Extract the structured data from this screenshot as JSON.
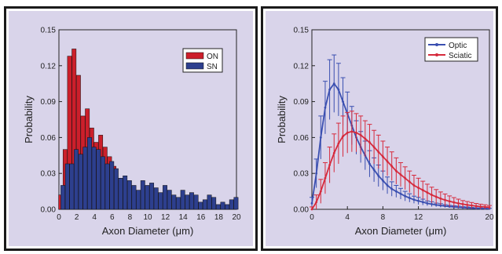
{
  "chart_data": [
    {
      "type": "bar",
      "xlabel": "Axon Diameter (μm)",
      "ylabel": "Probability",
      "xlim": [
        0,
        20
      ],
      "ylim": [
        0,
        0.15
      ],
      "xticks": [
        "0",
        "2",
        "4",
        "6",
        "8",
        "10",
        "12",
        "14",
        "16",
        "18",
        "20"
      ],
      "yticks": [
        "0.00",
        "0.03",
        "0.06",
        "0.09",
        "0.12",
        "0.15"
      ],
      "legend_position": "top-right",
      "background": "#d9d4ea",
      "series": [
        {
          "name": "ON",
          "color": "#cc1f2b",
          "x": [
            0.2,
            0.7,
            1.2,
            1.7,
            2.2,
            2.7,
            3.2,
            3.7,
            4.2,
            4.7,
            5.2,
            5.7,
            6.2,
            6.7,
            7.2,
            7.7,
            8.2
          ],
          "values": [
            0.012,
            0.05,
            0.128,
            0.134,
            0.112,
            0.078,
            0.084,
            0.068,
            0.056,
            0.062,
            0.052,
            0.044,
            0.036,
            0.026,
            0.014,
            0.006,
            0.002
          ]
        },
        {
          "name": "SN",
          "color": "#2d3f8e",
          "x": [
            0.45,
            0.95,
            1.45,
            1.95,
            2.45,
            2.95,
            3.45,
            3.95,
            4.45,
            4.95,
            5.45,
            5.95,
            6.45,
            6.95,
            7.45,
            7.95,
            8.45,
            8.95,
            9.45,
            9.95,
            10.45,
            10.95,
            11.45,
            11.95,
            12.45,
            12.95,
            13.45,
            13.95,
            14.45,
            14.95,
            15.45,
            15.95,
            16.45,
            16.95,
            17.45,
            17.95,
            18.45,
            18.95,
            19.45,
            19.95
          ],
          "values": [
            0.02,
            0.038,
            0.038,
            0.05,
            0.046,
            0.052,
            0.06,
            0.052,
            0.05,
            0.044,
            0.038,
            0.04,
            0.034,
            0.026,
            0.028,
            0.024,
            0.02,
            0.016,
            0.024,
            0.02,
            0.022,
            0.018,
            0.014,
            0.02,
            0.016,
            0.012,
            0.01,
            0.016,
            0.012,
            0.014,
            0.012,
            0.006,
            0.008,
            0.012,
            0.01,
            0.004,
            0.006,
            0.004,
            0.008,
            0.01
          ]
        }
      ]
    },
    {
      "type": "line",
      "xlabel": "Axon Diameter (μm)",
      "ylabel": "Probability",
      "xlim": [
        0,
        20
      ],
      "ylim": [
        0,
        0.15
      ],
      "xticks": [
        "0",
        "4",
        "8",
        "12",
        "16",
        "20"
      ],
      "yticks": [
        "0.00",
        "0.03",
        "0.06",
        "0.09",
        "0.12",
        "0.15"
      ],
      "legend_position": "top-right",
      "background": "#d9d4ea",
      "grid": false,
      "series": [
        {
          "name": "Optic",
          "color": "#3a4fb0",
          "x": [
            0,
            0.5,
            1,
            1.5,
            2,
            2.5,
            3,
            3.5,
            4,
            4.5,
            5,
            5.5,
            6,
            6.5,
            7,
            7.5,
            8,
            8.5,
            9,
            9.5,
            10,
            10.5,
            11,
            11.5,
            12,
            12.5,
            13,
            13.5,
            14,
            14.5,
            15,
            15.5,
            16,
            16.5,
            17,
            17.5,
            18,
            18.5,
            19,
            19.5,
            20
          ],
          "values": [
            0.005,
            0.03,
            0.06,
            0.085,
            0.1,
            0.105,
            0.1,
            0.09,
            0.08,
            0.07,
            0.06,
            0.052,
            0.045,
            0.038,
            0.033,
            0.028,
            0.024,
            0.02,
            0.017,
            0.015,
            0.013,
            0.011,
            0.0095,
            0.008,
            0.007,
            0.006,
            0.005,
            0.0043,
            0.0037,
            0.0032,
            0.0027,
            0.0023,
            0.002,
            0.0017,
            0.0014,
            0.0012,
            0.001,
            0.0008,
            0.0007,
            0.0006,
            0.0005
          ],
          "errors": [
            0.005,
            0.012,
            0.018,
            0.022,
            0.025,
            0.024,
            0.022,
            0.02,
            0.018,
            0.016,
            0.014,
            0.013,
            0.012,
            0.011,
            0.01,
            0.009,
            0.008,
            0.007,
            0.006,
            0.005,
            0.0045,
            0.004,
            0.0035,
            0.003,
            0.003,
            0.0025,
            0.002,
            0.002,
            0.0015,
            0.0015,
            0.0012,
            0.001,
            0.001,
            0.001,
            0.0008,
            0.0008,
            0.0006,
            0.0005,
            0.0005,
            0.0004,
            0.0003
          ]
        },
        {
          "name": "Sciatic",
          "color": "#d62a3c",
          "x": [
            0,
            0.5,
            1,
            1.5,
            2,
            2.5,
            3,
            3.5,
            4,
            4.5,
            5,
            5.5,
            6,
            6.5,
            7,
            7.5,
            8,
            8.5,
            9,
            9.5,
            10,
            10.5,
            11,
            11.5,
            12,
            12.5,
            13,
            13.5,
            14,
            14.5,
            15,
            15.5,
            16,
            16.5,
            17,
            17.5,
            18,
            18.5,
            19,
            19.5,
            20
          ],
          "values": [
            0.0,
            0.006,
            0.015,
            0.026,
            0.037,
            0.047,
            0.055,
            0.061,
            0.064,
            0.065,
            0.064,
            0.062,
            0.059,
            0.056,
            0.052,
            0.048,
            0.044,
            0.04,
            0.036,
            0.032,
            0.029,
            0.026,
            0.023,
            0.02,
            0.018,
            0.016,
            0.014,
            0.012,
            0.0105,
            0.009,
            0.0078,
            0.0067,
            0.0058,
            0.005,
            0.0043,
            0.0037,
            0.0032,
            0.0027,
            0.0023,
            0.002,
            0.0017
          ],
          "errors": [
            0.002,
            0.006,
            0.01,
            0.013,
            0.015,
            0.016,
            0.017,
            0.017,
            0.017,
            0.017,
            0.016,
            0.016,
            0.015,
            0.015,
            0.014,
            0.014,
            0.013,
            0.012,
            0.012,
            0.011,
            0.01,
            0.0095,
            0.009,
            0.0085,
            0.008,
            0.0075,
            0.007,
            0.0065,
            0.006,
            0.0055,
            0.005,
            0.0045,
            0.004,
            0.0035,
            0.003,
            0.0028,
            0.0025,
            0.0022,
            0.002,
            0.0018,
            0.0015
          ]
        }
      ]
    }
  ]
}
